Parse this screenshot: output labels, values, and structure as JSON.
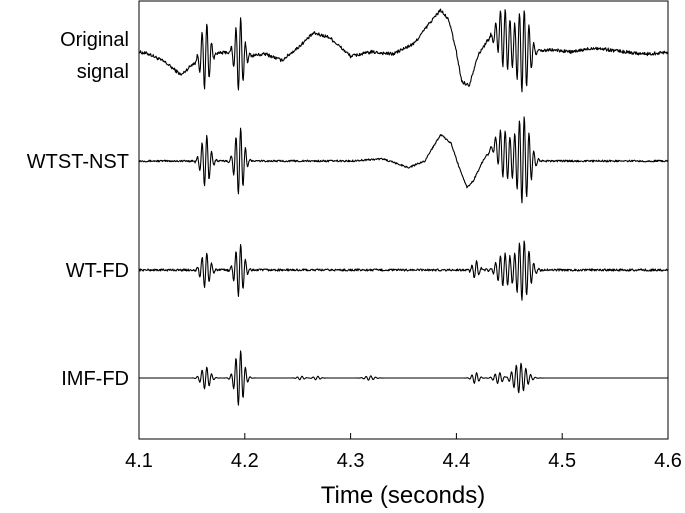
{
  "chart_data": {
    "type": "line",
    "xlabel": "Time (seconds)",
    "ylabel": "",
    "xlim": [
      4.1,
      4.6
    ],
    "xticks": [
      4.1,
      4.2,
      4.3,
      4.4,
      4.5,
      4.6
    ],
    "xtick_labels": [
      "4.1",
      "4.2",
      "4.3",
      "4.4",
      "4.5",
      "4.6"
    ],
    "y_ticks_shown": false,
    "grid": false,
    "series": [
      {
        "name": "Original signal",
        "label_lines": [
          "Original",
          "signal"
        ],
        "baseline": 0,
        "slow_trend": [
          [
            4.1,
            0.0
          ],
          [
            4.11,
            -0.05
          ],
          [
            4.125,
            -0.25
          ],
          [
            4.14,
            -0.55
          ],
          [
            4.15,
            -0.3
          ],
          [
            4.16,
            -0.1
          ],
          [
            4.17,
            -0.05
          ],
          [
            4.185,
            0.0
          ],
          [
            4.2,
            -0.1
          ],
          [
            4.22,
            -0.05
          ],
          [
            4.235,
            -0.2
          ],
          [
            4.25,
            0.1
          ],
          [
            4.265,
            0.45
          ],
          [
            4.28,
            0.35
          ],
          [
            4.3,
            -0.1
          ],
          [
            4.32,
            0.0
          ],
          [
            4.34,
            -0.05
          ],
          [
            4.36,
            0.2
          ],
          [
            4.375,
            0.7
          ],
          [
            4.385,
            1.0
          ],
          [
            4.393,
            0.75
          ],
          [
            4.4,
            0.0
          ],
          [
            4.405,
            -0.7
          ],
          [
            4.412,
            -0.8
          ],
          [
            4.42,
            -0.1
          ],
          [
            4.43,
            0.3
          ],
          [
            4.44,
            0.45
          ],
          [
            4.455,
            0.1
          ],
          [
            4.47,
            0.0
          ],
          [
            4.49,
            0.05
          ],
          [
            4.51,
            0.0
          ],
          [
            4.53,
            0.1
          ],
          [
            4.56,
            0.0
          ],
          [
            4.58,
            -0.05
          ],
          [
            4.6,
            0.0
          ]
        ],
        "bursts": [
          {
            "t": 4.163,
            "amp": 0.8,
            "width": 0.004
          },
          {
            "t": 4.195,
            "amp": 0.9,
            "width": 0.004
          },
          {
            "t": 4.445,
            "amp": 0.7,
            "width": 0.006
          },
          {
            "t": 4.463,
            "amp": 1.0,
            "width": 0.006
          }
        ],
        "noise": 0.04
      },
      {
        "name": "WTST-NST",
        "label_lines": [
          "WTST-NST"
        ],
        "baseline": 0,
        "slow_trend": [
          [
            4.1,
            0.0
          ],
          [
            4.3,
            0.0
          ],
          [
            4.33,
            0.05
          ],
          [
            4.355,
            -0.15
          ],
          [
            4.37,
            0.0
          ],
          [
            4.385,
            0.6
          ],
          [
            4.395,
            0.4
          ],
          [
            4.402,
            -0.1
          ],
          [
            4.41,
            -0.6
          ],
          [
            4.416,
            -0.45
          ],
          [
            4.425,
            0.0
          ],
          [
            4.435,
            0.35
          ],
          [
            4.448,
            0.1
          ],
          [
            4.47,
            0.0
          ],
          [
            4.6,
            0.0
          ]
        ],
        "bursts": [
          {
            "t": 4.163,
            "amp": 0.6,
            "width": 0.004
          },
          {
            "t": 4.195,
            "amp": 0.8,
            "width": 0.004
          },
          {
            "t": 4.445,
            "amp": 0.55,
            "width": 0.006
          },
          {
            "t": 4.463,
            "amp": 1.0,
            "width": 0.006
          }
        ],
        "noise": 0.02
      },
      {
        "name": "WT-FD",
        "label_lines": [
          "WT-FD"
        ],
        "baseline": 0,
        "slow_trend": [
          [
            4.1,
            0.0
          ],
          [
            4.6,
            0.0
          ]
        ],
        "bursts": [
          {
            "t": 4.163,
            "amp": 0.5,
            "width": 0.004
          },
          {
            "t": 4.195,
            "amp": 0.75,
            "width": 0.004
          },
          {
            "t": 4.418,
            "amp": 0.25,
            "width": 0.003
          },
          {
            "t": 4.445,
            "amp": 0.45,
            "width": 0.006
          },
          {
            "t": 4.463,
            "amp": 0.85,
            "width": 0.006
          }
        ],
        "noise": 0.03
      },
      {
        "name": "IMF-FD",
        "label_lines": [
          "IMF-FD"
        ],
        "baseline": 0,
        "slow_trend": [
          [
            4.1,
            0.0
          ],
          [
            4.6,
            0.0
          ]
        ],
        "bursts": [
          {
            "t": 4.163,
            "amp": 0.3,
            "width": 0.004
          },
          {
            "t": 4.195,
            "amp": 0.75,
            "width": 0.004
          },
          {
            "t": 4.253,
            "amp": 0.05,
            "width": 0.003
          },
          {
            "t": 4.268,
            "amp": 0.05,
            "width": 0.003
          },
          {
            "t": 4.318,
            "amp": 0.06,
            "width": 0.004
          },
          {
            "t": 4.418,
            "amp": 0.15,
            "width": 0.003
          },
          {
            "t": 4.44,
            "amp": 0.15,
            "width": 0.004
          },
          {
            "t": 4.46,
            "amp": 0.4,
            "width": 0.006
          }
        ],
        "noise": 0.0
      }
    ]
  }
}
